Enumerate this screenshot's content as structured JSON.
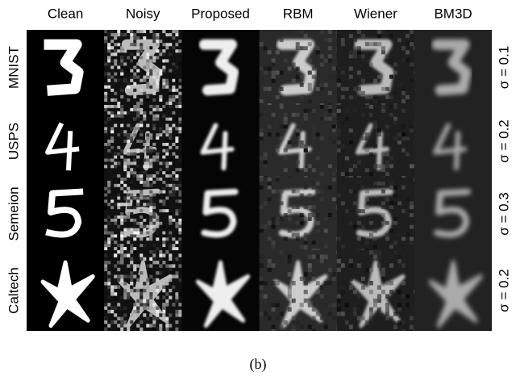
{
  "columns": [
    "Clean",
    "Noisy",
    "Proposed",
    "RBM",
    "Wiener",
    "BM3D"
  ],
  "rows": [
    {
      "label": "MNIST",
      "sigma": "σ = 0.1"
    },
    {
      "label": "USPS",
      "sigma": "σ = 0.2"
    },
    {
      "label": "Semeion",
      "sigma": "σ = 0.3"
    },
    {
      "label": "Caltech",
      "sigma": "σ = 0.2"
    }
  ],
  "caption": "(b)"
}
